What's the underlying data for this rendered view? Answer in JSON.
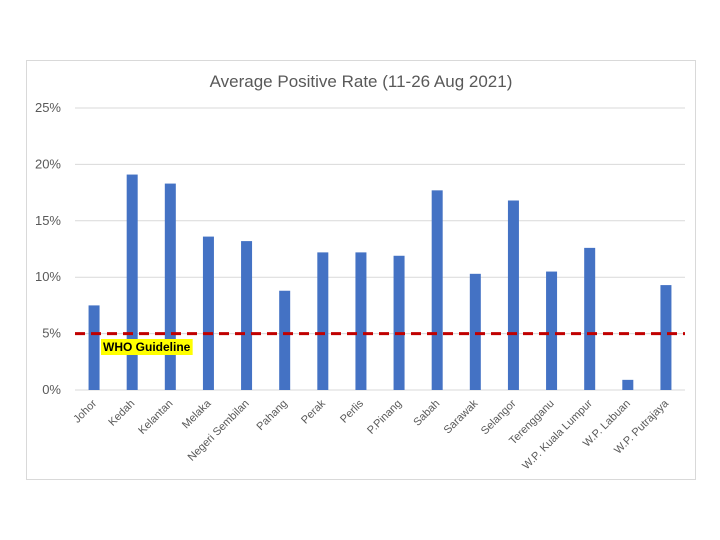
{
  "chart_data": {
    "type": "bar",
    "title": "Average Positive Rate (11-26 Aug 2021)",
    "categories": [
      "Johor",
      "Kedah",
      "Kelantan",
      "Melaka",
      "Negeri Sembilan",
      "Pahang",
      "Perak",
      "Perlis",
      "P.Pinang",
      "Sabah",
      "Sarawak",
      "Selangor",
      "Terengganu",
      "W.P. Kuala Lumpur",
      "W.P. Labuan",
      "W.P. Putrajaya"
    ],
    "values": [
      7.5,
      19.1,
      18.3,
      13.6,
      13.2,
      8.8,
      12.2,
      12.2,
      11.9,
      17.7,
      10.3,
      16.8,
      10.5,
      12.6,
      0.9,
      9.3
    ],
    "ylim": [
      0,
      25
    ],
    "yticks": [
      0,
      5,
      10,
      15,
      20,
      25
    ],
    "ytick_labels": [
      "0%",
      "5%",
      "10%",
      "15%",
      "20%",
      "25%"
    ],
    "grid": true,
    "reference_line": {
      "value": 5,
      "label": "WHO Guideline",
      "color": "#c00000"
    },
    "bar_color": "#4472c4"
  }
}
